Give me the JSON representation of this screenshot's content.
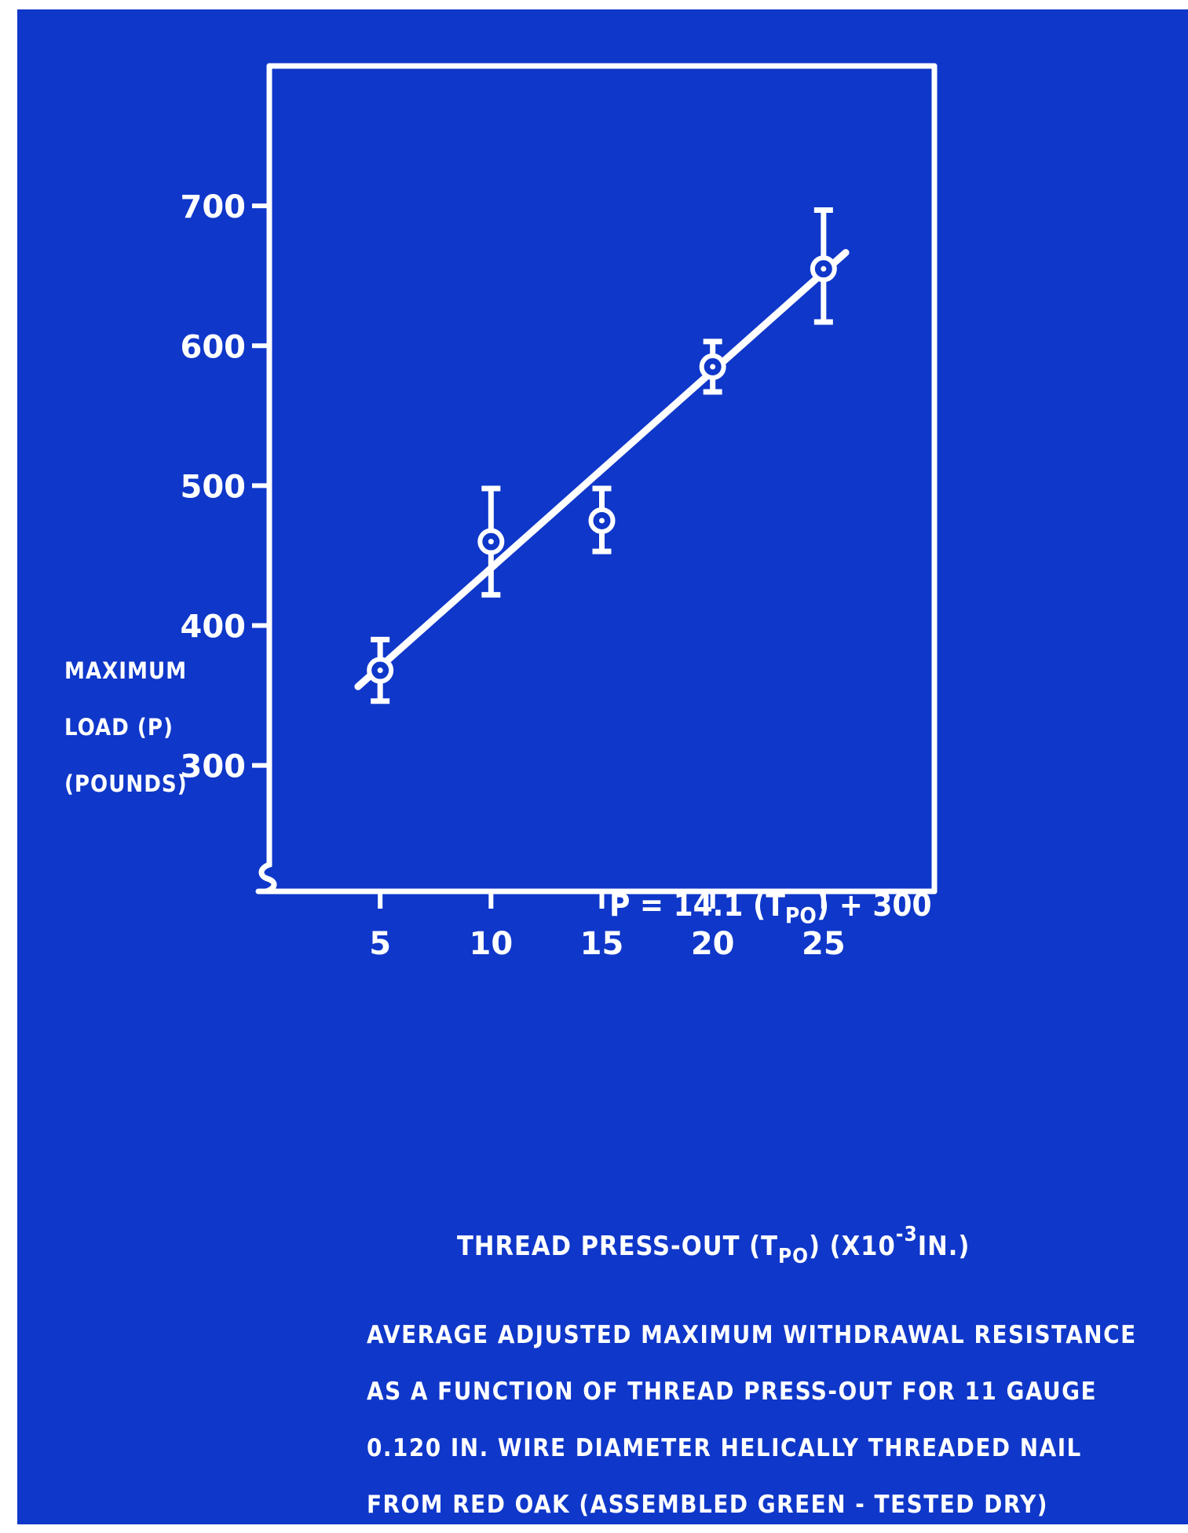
{
  "chart_data": {
    "type": "scatter",
    "xlabel": {
      "main": "THREAD PRESS-OUT (T",
      "main_sub": "PO",
      "mid": ") (x10",
      "mid_sup": "-3",
      "end": "IN.)"
    },
    "ylabel": [
      "MAXIMUM",
      "LOAD (P)",
      "(POUNDS)"
    ],
    "x_ticks": [
      5,
      10,
      15,
      20,
      25
    ],
    "x_tick_labels": [
      "5",
      "10",
      "15",
      "20",
      "25"
    ],
    "y_ticks": [
      300,
      400,
      500,
      600,
      700
    ],
    "y_tick_labels": [
      "300",
      "400",
      "500",
      "600",
      "700"
    ],
    "xlim": [
      0,
      30
    ],
    "ylim": [
      210,
      800
    ],
    "axis_break": "y",
    "grid": false,
    "series": [
      {
        "points": [
          {
            "x": 5,
            "y": 368,
            "err_low": 346,
            "err_high": 390
          },
          {
            "x": 10,
            "y": 460,
            "err_low": 422,
            "err_high": 498
          },
          {
            "x": 15,
            "y": 475,
            "err_low": 453,
            "err_high": 498
          },
          {
            "x": 20,
            "y": 585,
            "err_low": 567,
            "err_high": 603
          },
          {
            "x": 25,
            "y": 655,
            "err_low": 617,
            "err_high": 697
          }
        ]
      }
    ],
    "fit_line": {
      "slope": 14.1,
      "intercept": 300,
      "x_range": [
        4,
        26
      ]
    },
    "annotation": {
      "before": "P = 14.1 (T",
      "sub": "PO",
      "after": ") + 300"
    },
    "caption": [
      "Average adjusted maximum withdrawal resistance",
      "as a function of thread press-out for 11 gauge",
      "0.120 in. wire diameter helically threaded nail",
      "from red oak (assembled green - tested dry)"
    ],
    "colors": {
      "background": "#0f37c9",
      "foreground": "#ffffff"
    }
  }
}
